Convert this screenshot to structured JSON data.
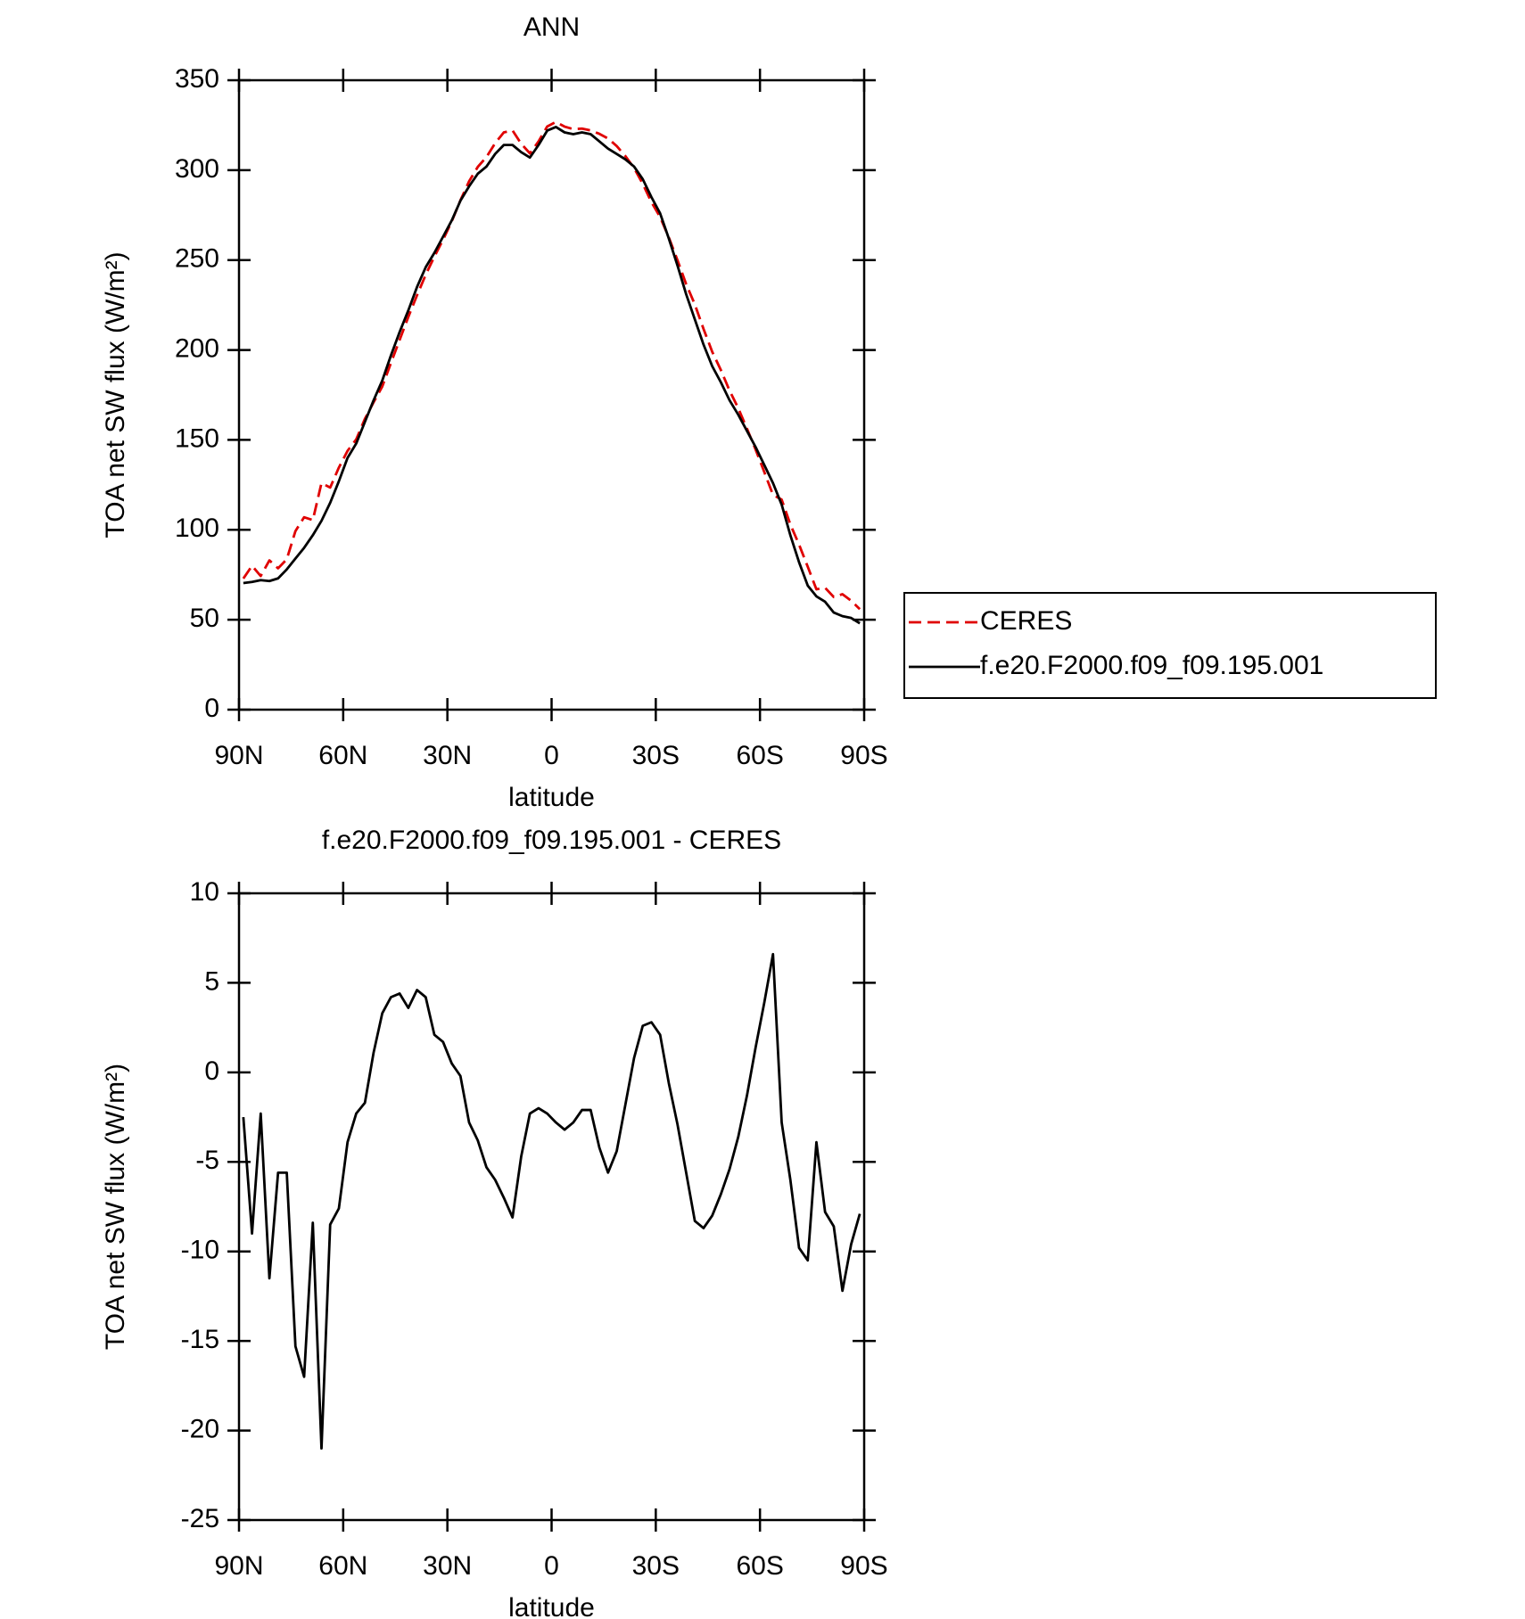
{
  "chart_data": [
    {
      "type": "line",
      "title": "ANN",
      "x_label": "latitude",
      "y_label": "TOA net SW flux (W/m²)",
      "x": [
        88.75,
        86.25,
        83.75,
        81.25,
        78.75,
        76.25,
        73.75,
        71.25,
        68.75,
        66.25,
        63.75,
        61.25,
        58.75,
        56.25,
        53.75,
        51.25,
        48.75,
        46.25,
        43.75,
        41.25,
        38.75,
        36.25,
        33.75,
        31.25,
        28.75,
        26.25,
        23.75,
        21.25,
        18.75,
        16.25,
        13.75,
        11.25,
        8.75,
        6.25,
        3.75,
        1.25,
        -1.25,
        -3.75,
        -6.25,
        -8.75,
        -11.25,
        -13.75,
        -16.25,
        -18.75,
        -21.25,
        -23.75,
        -26.25,
        -28.75,
        -31.25,
        -33.75,
        -36.25,
        -38.75,
        -41.25,
        -43.75,
        -46.25,
        -48.75,
        -51.25,
        -53.75,
        -56.25,
        -58.75,
        -61.25,
        -63.75,
        -66.25,
        -68.75,
        -71.25,
        -73.75,
        -76.25,
        -78.75,
        -81.25,
        -83.75,
        -86.25,
        -88.75
      ],
      "xlim": [
        90,
        -90
      ],
      "xticks": [
        {
          "value": 90,
          "label": "90N"
        },
        {
          "value": 60,
          "label": "60N"
        },
        {
          "value": 30,
          "label": "30N"
        },
        0,
        {
          "value": -30,
          "label": "30S"
        },
        {
          "value": -60,
          "label": "60S"
        },
        {
          "value": -90,
          "label": "90S"
        }
      ],
      "ylim": [
        0,
        350
      ],
      "yticks": [
        0,
        50,
        100,
        150,
        200,
        250,
        300,
        350
      ],
      "legend": "right",
      "series": [
        {
          "name": "CERES",
          "color": "#e00000",
          "style": "dashed",
          "values": [
            72.9,
            80,
            74.3,
            83,
            78.6,
            83.6,
            99.3,
            107,
            105.4,
            126,
            123.5,
            134.6,
            143.9,
            150.3,
            161.7,
            170.9,
            179.7,
            192.8,
            205.6,
            218.4,
            230.4,
            241.8,
            251.9,
            261.3,
            271.5,
            283.2,
            293.8,
            301.8,
            307.3,
            315,
            321,
            322.1,
            314.7,
            309.3,
            316,
            324.3,
            326.8,
            324.2,
            322.8,
            323.1,
            322.1,
            320.2,
            317.6,
            313.4,
            307.8,
            301.2,
            292.4,
            282.2,
            273.9,
            262.6,
            249.9,
            236.6,
            225.3,
            211.7,
            199,
            188.8,
            177.4,
            167.6,
            156.3,
            144.6,
            132.1,
            119.4,
            116.8,
            103,
            91.8,
            79.5,
            66.9,
            67.8,
            62.6,
            64.2,
            60.6,
            55.9
          ]
        },
        {
          "name": "f.e20.F2000.f09_f09.195.001",
          "color": "#000000",
          "style": "solid",
          "values": [
            70.4,
            71,
            72,
            71.5,
            73,
            78,
            84,
            90,
            97,
            105,
            115,
            127,
            140,
            148,
            160,
            172,
            183,
            197,
            210,
            222,
            235,
            246,
            254,
            263,
            272,
            283,
            291,
            298,
            302,
            309,
            314,
            314,
            310,
            307,
            314,
            322,
            324,
            321,
            320,
            321,
            320,
            316,
            312,
            309,
            306,
            302,
            295,
            285,
            276,
            262,
            247,
            231,
            217,
            203,
            191,
            182,
            172,
            164,
            155,
            146,
            136,
            126,
            114,
            97,
            82,
            69,
            63,
            60,
            54,
            52,
            51,
            48
          ]
        }
      ]
    },
    {
      "type": "line",
      "title": "f.e20.F2000.f09_f09.195.001 - CERES",
      "x_label": "latitude",
      "y_label": "TOA net SW flux (W/m²)",
      "x": [
        88.75,
        86.25,
        83.75,
        81.25,
        78.75,
        76.25,
        73.75,
        71.25,
        68.75,
        66.25,
        63.75,
        61.25,
        58.75,
        56.25,
        53.75,
        51.25,
        48.75,
        46.25,
        43.75,
        41.25,
        38.75,
        36.25,
        33.75,
        31.25,
        28.75,
        26.25,
        23.75,
        21.25,
        18.75,
        16.25,
        13.75,
        11.25,
        8.75,
        6.25,
        3.75,
        1.25,
        -1.25,
        -3.75,
        -6.25,
        -8.75,
        -11.25,
        -13.75,
        -16.25,
        -18.75,
        -21.25,
        -23.75,
        -26.25,
        -28.75,
        -31.25,
        -33.75,
        -36.25,
        -38.75,
        -41.25,
        -43.75,
        -46.25,
        -48.75,
        -51.25,
        -53.75,
        -56.25,
        -58.75,
        -61.25,
        -63.75,
        -66.25,
        -68.75,
        -71.25,
        -73.75,
        -76.25,
        -78.75,
        -81.25,
        -83.75,
        -86.25,
        -88.75
      ],
      "xlim": [
        90,
        -90
      ],
      "xticks": [
        {
          "value": 90,
          "label": "90N"
        },
        {
          "value": 60,
          "label": "60N"
        },
        {
          "value": 30,
          "label": "30N"
        },
        0,
        {
          "value": -30,
          "label": "30S"
        },
        {
          "value": -60,
          "label": "60S"
        },
        {
          "value": -90,
          "label": "90S"
        }
      ],
      "ylim": [
        -25,
        10
      ],
      "yticks": [
        -25,
        -20,
        -15,
        -10,
        -5,
        0,
        5,
        10
      ],
      "color": "#000000",
      "values": [
        -2.5,
        -9,
        -2.3,
        -11.5,
        -5.6,
        -5.6,
        -15.3,
        -17,
        -8.4,
        -21,
        -8.5,
        -7.6,
        -3.9,
        -2.3,
        -1.7,
        1.1,
        3.3,
        4.2,
        4.4,
        3.6,
        4.6,
        4.2,
        2.1,
        1.7,
        0.5,
        -0.2,
        -2.8,
        -3.8,
        -5.3,
        -6,
        -7,
        -8.1,
        -4.7,
        -2.3,
        -2,
        -2.3,
        -2.8,
        -3.2,
        -2.8,
        -2.1,
        -2.1,
        -4.2,
        -5.6,
        -4.4,
        -1.8,
        0.8,
        2.6,
        2.8,
        2.1,
        -0.6,
        -2.9,
        -5.6,
        -8.3,
        -8.7,
        -8,
        -6.8,
        -5.4,
        -3.6,
        -1.3,
        1.4,
        3.9,
        6.6,
        -2.8,
        -6,
        -9.8,
        -10.5,
        -3.9,
        -7.8,
        -8.6,
        -12.2,
        -9.6,
        -7.9
      ]
    }
  ]
}
